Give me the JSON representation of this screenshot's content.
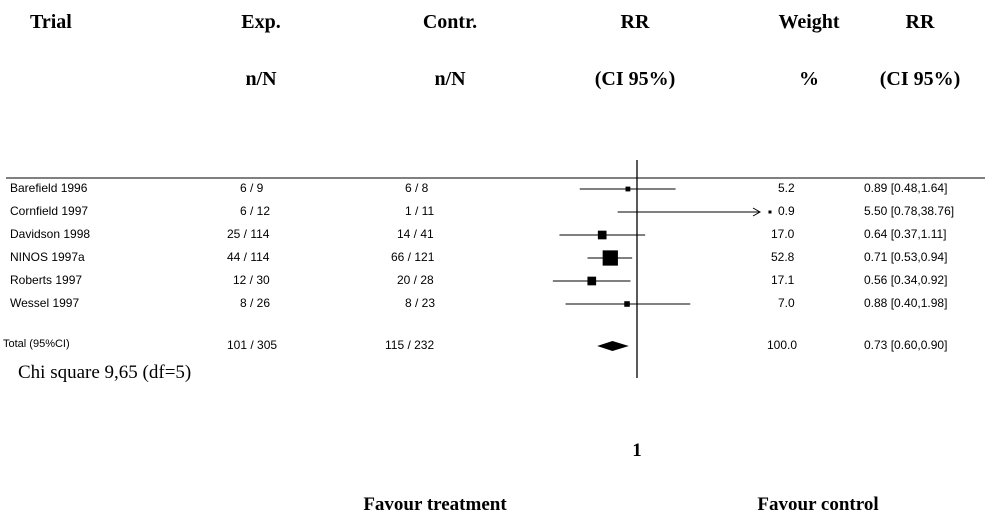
{
  "headers": {
    "trial": "Trial",
    "exp": "Exp.",
    "exp_sub": "n/N",
    "contr": "Contr.",
    "contr_sub": "n/N",
    "rr": "RR",
    "rr_sub": "(CI 95%)",
    "weight": "Weight",
    "weight_sub": "%",
    "rr2": "RR",
    "rr2_sub": "(CI 95%)"
  },
  "rows": [
    {
      "trial": "Barefield 1996",
      "exp": "6  / 9",
      "contr": "6  / 8",
      "weight": "5.2",
      "rr_ci": "0.89 [0.48,1.64]"
    },
    {
      "trial": "Cornfield 1997",
      "exp": "6  / 12",
      "contr": "1  / 11",
      "weight": "0.9",
      "rr_ci": "5.50 [0.78,38.76]"
    },
    {
      "trial": "Davidson 1998",
      "exp": "25  / 114",
      "contr": "14  / 41",
      "weight": "17.0",
      "rr_ci": "0.64 [0.37,1.11]"
    },
    {
      "trial": "NINOS 1997a",
      "exp": "44  / 114",
      "contr": "66  / 121",
      "weight": "52.8",
      "rr_ci": "0.71 [0.53,0.94]"
    },
    {
      "trial": "Roberts 1997",
      "exp": "12  / 30",
      "contr": "20  / 28",
      "weight": "17.1",
      "rr_ci": "0.56 [0.34,0.92]"
    },
    {
      "trial": "Wessel 1997",
      "exp": "8  / 26",
      "contr": "8  / 23",
      "weight": "7.0",
      "rr_ci": "0.88 [0.40,1.98]"
    }
  ],
  "total": {
    "trial": "Total (95%CI)",
    "exp": "101  / 305",
    "contr": "115  / 232",
    "weight": "100.0",
    "rr_ci": "0.73 [0.60,0.90]"
  },
  "heterogeneity": "Chi square 9,65 (df=5)",
  "axis_tick": "1",
  "favour_left": "Favour treatment",
  "favour_right": "Favour control",
  "chart_data": {
    "type": "forest",
    "scale": "log",
    "reference_line": 1,
    "studies": [
      {
        "name": "Barefield 1996",
        "rr": 0.89,
        "lo": 0.48,
        "hi": 1.64,
        "weight": 5.2
      },
      {
        "name": "Cornfield 1997",
        "rr": 5.5,
        "lo": 0.78,
        "hi": 38.76,
        "weight": 0.9
      },
      {
        "name": "Davidson 1998",
        "rr": 0.64,
        "lo": 0.37,
        "hi": 1.11,
        "weight": 17.0
      },
      {
        "name": "NINOS 1997a",
        "rr": 0.71,
        "lo": 0.53,
        "hi": 0.94,
        "weight": 52.8
      },
      {
        "name": "Roberts 1997",
        "rr": 0.56,
        "lo": 0.34,
        "hi": 0.92,
        "weight": 17.1
      },
      {
        "name": "Wessel 1997",
        "rr": 0.88,
        "lo": 0.4,
        "hi": 1.98,
        "weight": 7.0
      }
    ],
    "pooled": {
      "rr": 0.73,
      "lo": 0.6,
      "hi": 0.9
    }
  }
}
